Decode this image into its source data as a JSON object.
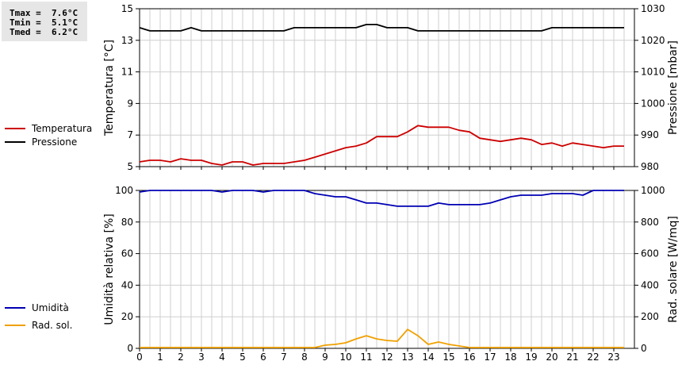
{
  "stats": {
    "tmax": "Tmax =  7.6°C",
    "tmin": "Tmin =  5.1°C",
    "tmed": "Tmed =  6.2°C"
  },
  "colors": {
    "temperature": "#cc0000",
    "pressure": "#000000",
    "humidity": "#0000b4",
    "radiation": "#f0a000",
    "grid": "#cfcfcf"
  },
  "chart_data": [
    {
      "type": "line",
      "title": "",
      "xlabel": "",
      "xlim": [
        0,
        24
      ],
      "x_ticks": [
        "0",
        "1",
        "2",
        "3",
        "4",
        "5",
        "6",
        "7",
        "8",
        "9",
        "10",
        "11",
        "12",
        "13",
        "14",
        "15",
        "16",
        "17",
        "18",
        "19",
        "20",
        "21",
        "22",
        "23"
      ],
      "y_left": {
        "label": "Temperatura [°C]",
        "ylim": [
          5,
          15
        ],
        "ticks": [
          "5",
          "7",
          "9",
          "11",
          "13",
          "15"
        ]
      },
      "y_right": {
        "label": "Pressione [mbar]",
        "ylim": [
          980,
          1030
        ],
        "ticks": [
          "980",
          "990",
          "1000",
          "1010",
          "1020",
          "1030"
        ]
      },
      "grid": true,
      "legend_position": "left",
      "series": [
        {
          "name": "Temperatura",
          "axis": "left",
          "color": "#cc0000",
          "x": [
            0,
            0.5,
            1,
            1.5,
            2,
            2.5,
            3,
            3.5,
            4,
            4.5,
            5,
            5.5,
            6,
            6.5,
            7,
            7.5,
            8,
            8.5,
            9,
            9.5,
            10,
            10.5,
            11,
            11.5,
            12,
            12.5,
            13,
            13.5,
            14,
            14.5,
            15,
            15.5,
            16,
            16.5,
            17,
            17.5,
            18,
            18.5,
            19,
            19.5,
            20,
            20.5,
            21,
            21.5,
            22,
            22.5,
            23,
            23.5
          ],
          "y": [
            5.3,
            5.4,
            5.4,
            5.3,
            5.5,
            5.4,
            5.4,
            5.2,
            5.1,
            5.3,
            5.3,
            5.1,
            5.2,
            5.2,
            5.2,
            5.3,
            5.4,
            5.6,
            5.8,
            6.0,
            6.2,
            6.3,
            6.5,
            6.9,
            6.9,
            6.9,
            7.2,
            7.6,
            7.5,
            7.5,
            7.5,
            7.3,
            7.2,
            6.8,
            6.7,
            6.6,
            6.7,
            6.8,
            6.7,
            6.4,
            6.5,
            6.3,
            6.5,
            6.4,
            6.3,
            6.2,
            6.3,
            6.3
          ]
        },
        {
          "name": "Pressione",
          "axis": "right",
          "color": "#000000",
          "x": [
            0,
            0.5,
            1,
            1.5,
            2,
            2.5,
            3,
            3.5,
            4,
            4.5,
            5,
            5.5,
            6,
            6.5,
            7,
            7.5,
            8,
            8.5,
            9,
            9.5,
            10,
            10.5,
            11,
            11.5,
            12,
            12.5,
            13,
            13.5,
            14,
            14.5,
            15,
            15.5,
            16,
            16.5,
            17,
            17.5,
            18,
            18.5,
            19,
            19.5,
            20,
            20.5,
            21,
            21.5,
            22,
            22.5,
            23,
            23.5
          ],
          "y": [
            1024,
            1023,
            1023,
            1023,
            1023,
            1024,
            1023,
            1023,
            1023,
            1023,
            1023,
            1023,
            1023,
            1023,
            1023,
            1024,
            1024,
            1024,
            1024,
            1024,
            1024,
            1024,
            1025,
            1025,
            1024,
            1024,
            1024,
            1023,
            1023,
            1023,
            1023,
            1023,
            1023,
            1023,
            1023,
            1023,
            1023,
            1023,
            1023,
            1023,
            1024,
            1024,
            1024,
            1024,
            1024,
            1024,
            1024,
            1024
          ]
        }
      ]
    },
    {
      "type": "line",
      "title": "",
      "xlabel": "",
      "xlim": [
        0,
        24
      ],
      "x_ticks": [
        "0",
        "1",
        "2",
        "3",
        "4",
        "5",
        "6",
        "7",
        "8",
        "9",
        "10",
        "11",
        "12",
        "13",
        "14",
        "15",
        "16",
        "17",
        "18",
        "19",
        "20",
        "21",
        "22",
        "23"
      ],
      "y_left": {
        "label": "Umidità relativa [%]",
        "ylim": [
          0,
          100
        ],
        "ticks": [
          "0",
          "20",
          "40",
          "60",
          "80",
          "100"
        ]
      },
      "y_right": {
        "label": "Rad. solare [W/mq]",
        "ylim": [
          0,
          1000
        ],
        "ticks": [
          "0",
          "200",
          "400",
          "600",
          "800",
          "1000"
        ]
      },
      "grid": true,
      "legend_position": "left",
      "series": [
        {
          "name": "Umidità",
          "axis": "left",
          "color": "#0000b4",
          "x": [
            0,
            0.5,
            1,
            1.5,
            2,
            2.5,
            3,
            3.5,
            4,
            4.5,
            5,
            5.5,
            6,
            6.5,
            7,
            7.5,
            8,
            8.5,
            9,
            9.5,
            10,
            10.5,
            11,
            11.5,
            12,
            12.5,
            13,
            13.5,
            14,
            14.5,
            15,
            15.5,
            16,
            16.5,
            17,
            17.5,
            18,
            18.5,
            19,
            19.5,
            20,
            20.5,
            21,
            21.5,
            22,
            22.5,
            23,
            23.5
          ],
          "y": [
            99,
            100,
            100,
            100,
            100,
            100,
            100,
            100,
            99,
            100,
            100,
            100,
            99,
            100,
            100,
            100,
            100,
            98,
            97,
            96,
            96,
            94,
            92,
            92,
            91,
            90,
            90,
            90,
            90,
            92,
            91,
            91,
            91,
            91,
            92,
            94,
            96,
            97,
            97,
            97,
            98,
            98,
            98,
            97,
            100,
            100,
            100,
            100
          ]
        },
        {
          "name": "Rad. sol.",
          "axis": "right",
          "color": "#f0a000",
          "x": [
            0,
            0.5,
            1,
            1.5,
            2,
            2.5,
            3,
            3.5,
            4,
            4.5,
            5,
            5.5,
            6,
            6.5,
            7,
            7.5,
            8,
            8.5,
            9,
            9.5,
            10,
            10.5,
            11,
            11.5,
            12,
            12.5,
            13,
            13.5,
            14,
            14.5,
            15,
            15.5,
            16,
            16.5,
            17,
            17.5,
            18,
            18.5,
            19,
            19.5,
            20,
            20.5,
            21,
            21.5,
            22,
            22.5,
            23,
            23.5
          ],
          "y": [
            5,
            5,
            5,
            5,
            5,
            5,
            5,
            5,
            5,
            5,
            5,
            5,
            5,
            5,
            5,
            5,
            5,
            5,
            20,
            25,
            35,
            60,
            80,
            60,
            50,
            45,
            120,
            80,
            25,
            40,
            25,
            15,
            5,
            5,
            5,
            5,
            5,
            5,
            5,
            5,
            5,
            5,
            5,
            5,
            5,
            5,
            5,
            5
          ]
        }
      ]
    }
  ]
}
